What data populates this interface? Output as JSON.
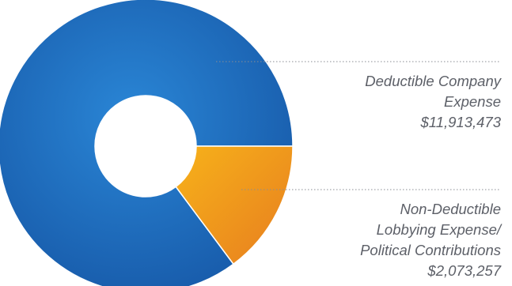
{
  "chart_data": {
    "type": "pie",
    "donut": true,
    "title": "",
    "legend": "none",
    "slices": [
      {
        "label_lines": [
          "Deductible Company",
          "Expense"
        ],
        "value_text": "$11,913,473",
        "value": 11913473,
        "color_start": "#1a5dab",
        "color_end": "#1f78c8"
      },
      {
        "label_lines": [
          "Non-Deductible",
          "Lobbying Expense/",
          "Political Contributions"
        ],
        "value_text": "$2,073,257",
        "value": 2073257,
        "color_start": "#f2a415",
        "color_end": "#e8871d"
      }
    ]
  }
}
